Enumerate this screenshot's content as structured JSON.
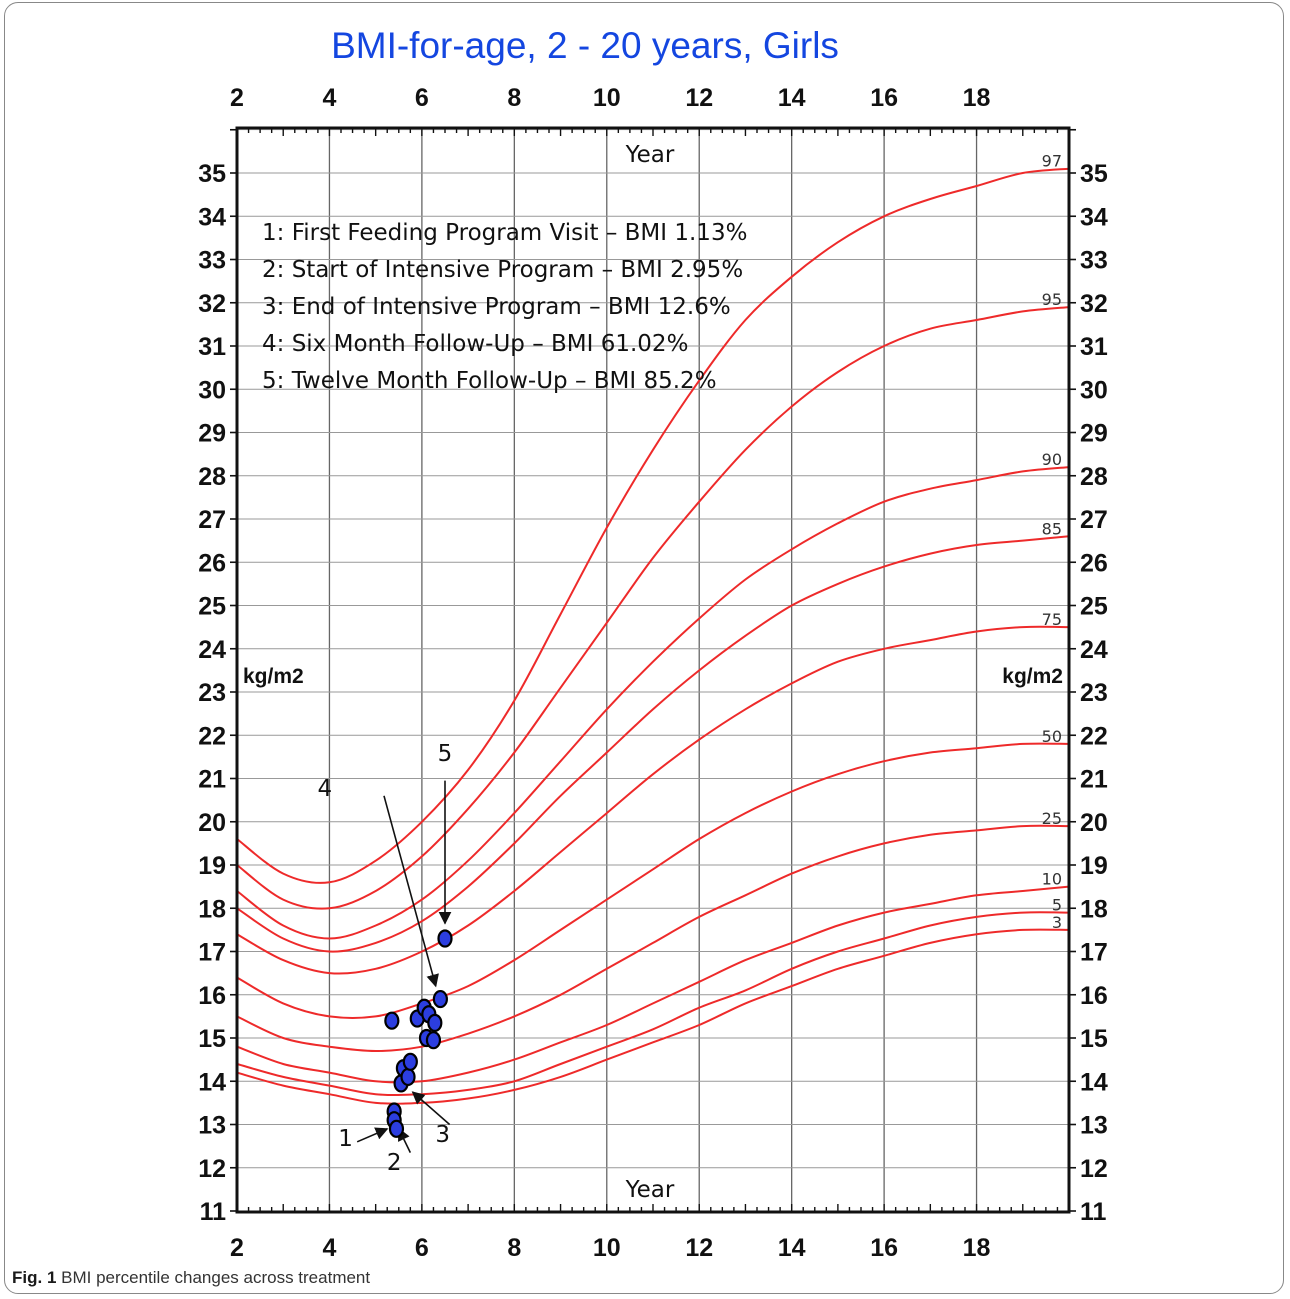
{
  "chart_data": {
    "type": "line",
    "title": "BMI-for-age, 2 - 20 years, Girls",
    "xlabel": "Year",
    "ylabel": "kg/m2",
    "xlim": [
      2,
      20
    ],
    "ylim": [
      11,
      36
    ],
    "x_ticks": [
      "2",
      "4",
      "6",
      "8",
      "10",
      "12",
      "14",
      "16",
      "18"
    ],
    "y_ticks": [
      "11",
      "12",
      "13",
      "14",
      "15",
      "16",
      "17",
      "18",
      "19",
      "20",
      "21",
      "22",
      "23",
      "24",
      "25",
      "26",
      "27",
      "28",
      "29",
      "30",
      "31",
      "32",
      "33",
      "34",
      "35"
    ],
    "grid": true,
    "x_ages": [
      2,
      3,
      4,
      5,
      6,
      7,
      8,
      9,
      10,
      11,
      12,
      13,
      14,
      15,
      16,
      17,
      18,
      19,
      20
    ],
    "series": [
      {
        "name": "97",
        "values": [
          19.6,
          18.8,
          18.6,
          19.1,
          20.0,
          21.2,
          22.8,
          24.8,
          26.8,
          28.6,
          30.2,
          31.6,
          32.6,
          33.4,
          34.0,
          34.4,
          34.7,
          35.0,
          35.1
        ]
      },
      {
        "name": "95",
        "values": [
          19.0,
          18.2,
          18.0,
          18.4,
          19.2,
          20.3,
          21.6,
          23.1,
          24.6,
          26.1,
          27.4,
          28.6,
          29.6,
          30.4,
          31.0,
          31.4,
          31.6,
          31.8,
          31.9
        ]
      },
      {
        "name": "90",
        "values": [
          18.4,
          17.6,
          17.3,
          17.6,
          18.2,
          19.1,
          20.2,
          21.4,
          22.6,
          23.7,
          24.7,
          25.6,
          26.3,
          26.9,
          27.4,
          27.7,
          27.9,
          28.1,
          28.2
        ]
      },
      {
        "name": "85",
        "values": [
          18.0,
          17.3,
          17.0,
          17.2,
          17.7,
          18.5,
          19.5,
          20.6,
          21.6,
          22.6,
          23.5,
          24.3,
          25.0,
          25.5,
          25.9,
          26.2,
          26.4,
          26.5,
          26.6
        ]
      },
      {
        "name": "75",
        "values": [
          17.4,
          16.8,
          16.5,
          16.6,
          17.0,
          17.6,
          18.4,
          19.3,
          20.2,
          21.1,
          21.9,
          22.6,
          23.2,
          23.7,
          24.0,
          24.2,
          24.4,
          24.5,
          24.5
        ]
      },
      {
        "name": "50",
        "values": [
          16.4,
          15.8,
          15.5,
          15.5,
          15.8,
          16.2,
          16.8,
          17.5,
          18.2,
          18.9,
          19.6,
          20.2,
          20.7,
          21.1,
          21.4,
          21.6,
          21.7,
          21.8,
          21.8
        ]
      },
      {
        "name": "25",
        "values": [
          15.5,
          15.0,
          14.8,
          14.7,
          14.8,
          15.1,
          15.5,
          16.0,
          16.6,
          17.2,
          17.8,
          18.3,
          18.8,
          19.2,
          19.5,
          19.7,
          19.8,
          19.9,
          19.9
        ]
      },
      {
        "name": "10",
        "values": [
          14.8,
          14.4,
          14.2,
          14.0,
          14.0,
          14.2,
          14.5,
          14.9,
          15.3,
          15.8,
          16.3,
          16.8,
          17.2,
          17.6,
          17.9,
          18.1,
          18.3,
          18.4,
          18.5
        ]
      },
      {
        "name": "5",
        "values": [
          14.4,
          14.1,
          13.9,
          13.7,
          13.7,
          13.8,
          14.0,
          14.4,
          14.8,
          15.2,
          15.7,
          16.1,
          16.6,
          17.0,
          17.3,
          17.6,
          17.8,
          17.9,
          17.9
        ]
      },
      {
        "name": "3",
        "values": [
          14.2,
          13.9,
          13.7,
          13.5,
          13.5,
          13.6,
          13.8,
          14.1,
          14.5,
          14.9,
          15.3,
          15.8,
          16.2,
          16.6,
          16.9,
          17.2,
          17.4,
          17.5,
          17.5
        ]
      }
    ],
    "patient_points": [
      {
        "x": 5.35,
        "y": 15.4
      },
      {
        "x": 5.4,
        "y": 13.3
      },
      {
        "x": 5.4,
        "y": 13.1
      },
      {
        "x": 5.45,
        "y": 12.9
      },
      {
        "x": 5.55,
        "y": 13.95
      },
      {
        "x": 5.6,
        "y": 14.3
      },
      {
        "x": 5.7,
        "y": 14.1
      },
      {
        "x": 5.75,
        "y": 14.45
      },
      {
        "x": 5.9,
        "y": 15.45
      },
      {
        "x": 6.05,
        "y": 15.7
      },
      {
        "x": 6.1,
        "y": 15.0
      },
      {
        "x": 6.15,
        "y": 15.55
      },
      {
        "x": 6.25,
        "y": 14.95
      },
      {
        "x": 6.28,
        "y": 15.35
      },
      {
        "x": 6.4,
        "y": 15.9
      },
      {
        "x": 6.5,
        "y": 17.3
      }
    ],
    "annotations": [
      {
        "label": "1",
        "text_x": 4.35,
        "text_y": 12.5,
        "tail_x": 4.6,
        "tail_y": 12.6,
        "head_x": 5.25,
        "head_y": 12.9
      },
      {
        "label": "2",
        "text_x": 5.4,
        "text_y": 11.95,
        "tail_x": 5.75,
        "tail_y": 12.35,
        "head_x": 5.5,
        "head_y": 12.9
      },
      {
        "label": "3",
        "text_x": 6.45,
        "text_y": 12.6,
        "tail_x": 6.6,
        "tail_y": 13.0,
        "head_x": 5.8,
        "head_y": 13.75
      },
      {
        "label": "4",
        "text_x": 3.9,
        "text_y": 20.6,
        "tail_x": 5.18,
        "tail_y": 20.6,
        "head_x": 6.3,
        "head_y": 16.2
      },
      {
        "label": "5",
        "text_x": 6.5,
        "text_y": 21.4,
        "tail_x": 6.5,
        "tail_y": 20.95,
        "head_x": 6.5,
        "head_y": 17.65
      }
    ],
    "legend": [
      "1: First Feeding Program Visit – BMI 1.13%",
      "2: Start of Intensive Program – BMI 2.95%",
      "3: End of Intensive Program – BMI 12.6%",
      "4: Six Month Follow-Up – BMI 61.02%",
      "5: Twelve Month Follow-Up – BMI 85.2%"
    ],
    "colors": {
      "curves": "#ee2a2a",
      "title": "#1446e0",
      "points": "#2c3ee0"
    }
  },
  "caption": {
    "prefix": "Fig. 1",
    "text": " BMI percentile changes across treatment"
  }
}
